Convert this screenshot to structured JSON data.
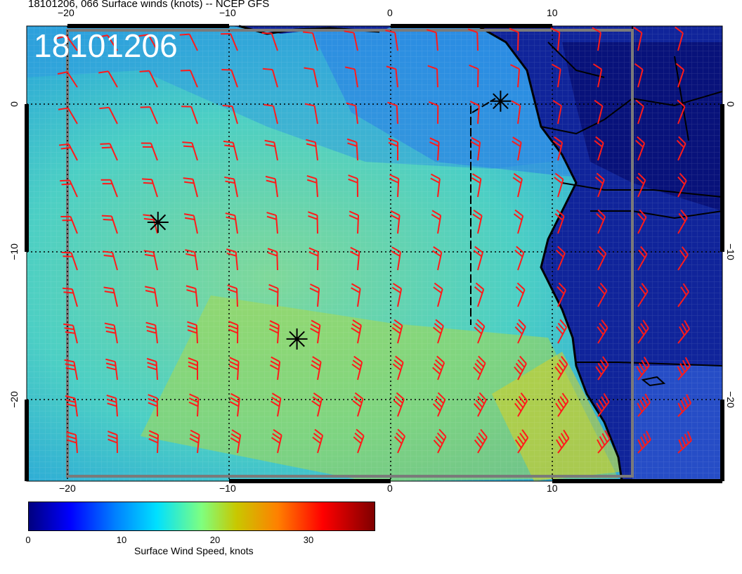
{
  "title": "18101206, 066 Surface winds (knots) -- NCEP GFS",
  "stamp": "18101206",
  "axes": {
    "top_ticks": [
      "−20",
      "−10",
      "0",
      "10"
    ],
    "bottom_ticks": [
      "−20",
      "−10",
      "0",
      "10"
    ],
    "left_ticks": [
      "0",
      "−10",
      "−20"
    ],
    "right_ticks": [
      "0",
      "−10",
      "−20"
    ]
  },
  "colorbar": {
    "label": "Surface Wind Speed, knots",
    "ticks": [
      "0",
      "10",
      "20",
      "30"
    ],
    "range": [
      0,
      37
    ]
  },
  "colors": {
    "barb": "#ff1a1a",
    "land_dark": "#0a1a8c",
    "ocean_mid": "#2ec8d8",
    "ocean_high": "#8fd860"
  },
  "markers": [
    {
      "name": "storm-marker-1",
      "lon": -14.4,
      "lat": -8.0
    },
    {
      "name": "storm-marker-2",
      "lon": -5.8,
      "lat": -15.9
    },
    {
      "name": "storm-marker-3",
      "lon": 6.8,
      "lat": 0.2
    }
  ]
}
